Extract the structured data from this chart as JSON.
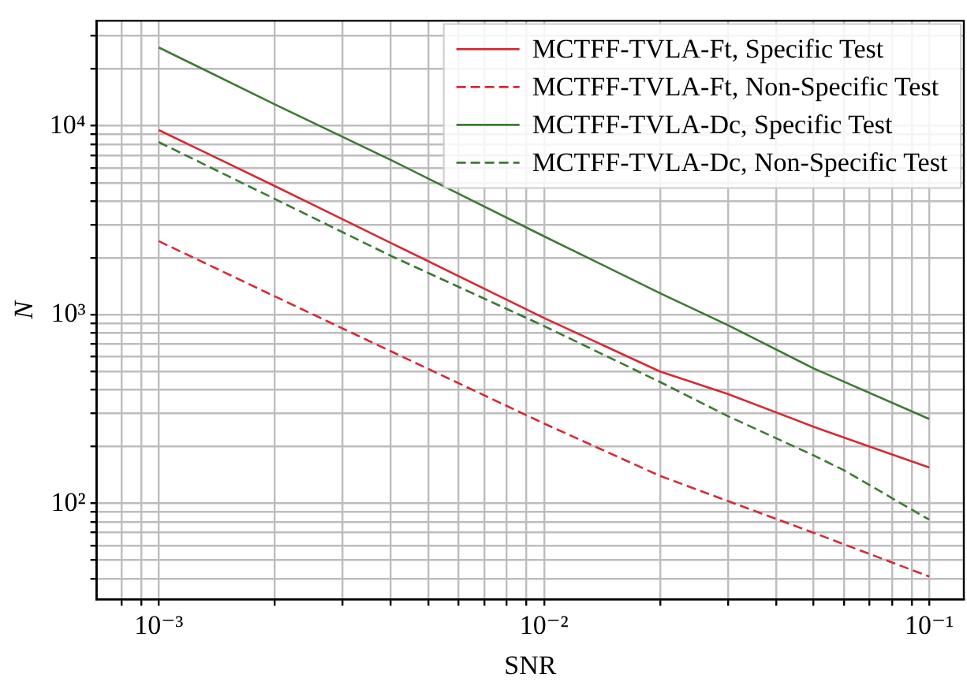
{
  "chart_data": {
    "type": "line",
    "xlabel": "SNR",
    "ylabel": "N",
    "log": "xy",
    "grid": true,
    "legend": "top right",
    "marker": "none",
    "xlim": [
      0.00069,
      0.123
    ],
    "ylim": [
      31,
      36000
    ],
    "xticks": [
      {
        "value": 0.0008,
        "label": null
      },
      {
        "value": 0.0009,
        "label": null
      },
      {
        "value": 0.001,
        "label": "10⁻³"
      },
      {
        "value": 0.002,
        "label": null
      },
      {
        "value": 0.003,
        "label": null
      },
      {
        "value": 0.004,
        "label": null
      },
      {
        "value": 0.005,
        "label": null
      },
      {
        "value": 0.006,
        "label": null
      },
      {
        "value": 0.007,
        "label": null
      },
      {
        "value": 0.008,
        "label": null
      },
      {
        "value": 0.009,
        "label": null
      },
      {
        "value": 0.01,
        "label": "10⁻²"
      },
      {
        "value": 0.02,
        "label": null
      },
      {
        "value": 0.03,
        "label": null
      },
      {
        "value": 0.04,
        "label": null
      },
      {
        "value": 0.05,
        "label": null
      },
      {
        "value": 0.06,
        "label": null
      },
      {
        "value": 0.07,
        "label": null
      },
      {
        "value": 0.08,
        "label": null
      },
      {
        "value": 0.09,
        "label": null
      },
      {
        "value": 0.1,
        "label": "10⁻¹"
      }
    ],
    "yticks": [
      {
        "value": 40,
        "label": null
      },
      {
        "value": 50,
        "label": null
      },
      {
        "value": 60,
        "label": null
      },
      {
        "value": 70,
        "label": null
      },
      {
        "value": 80,
        "label": null
      },
      {
        "value": 90,
        "label": null
      },
      {
        "value": 100,
        "label": "10²"
      },
      {
        "value": 200,
        "label": null
      },
      {
        "value": 300,
        "label": null
      },
      {
        "value": 400,
        "label": null
      },
      {
        "value": 500,
        "label": null
      },
      {
        "value": 600,
        "label": null
      },
      {
        "value": 700,
        "label": null
      },
      {
        "value": 800,
        "label": null
      },
      {
        "value": 900,
        "label": null
      },
      {
        "value": 1000,
        "label": "10³"
      },
      {
        "value": 2000,
        "label": null
      },
      {
        "value": 3000,
        "label": null
      },
      {
        "value": 4000,
        "label": null
      },
      {
        "value": 5000,
        "label": null
      },
      {
        "value": 6000,
        "label": null
      },
      {
        "value": 7000,
        "label": null
      },
      {
        "value": 8000,
        "label": null
      },
      {
        "value": 9000,
        "label": null
      },
      {
        "value": 10000,
        "label": "10⁴"
      },
      {
        "value": 20000,
        "label": null
      },
      {
        "value": 30000,
        "label": null
      }
    ],
    "series": [
      {
        "name": "MCTFF-TVLA-Ft, Specific Test",
        "color": "#d62a35",
        "line_style": "solid",
        "x": [
          0.001,
          0.002,
          0.004,
          0.01,
          0.02,
          0.03,
          0.05,
          0.07,
          0.1
        ],
        "values": [
          9500,
          4800,
          2400,
          960,
          500,
          380,
          255,
          200,
          155
        ]
      },
      {
        "name": "MCTFF-TVLA-Ft, Non-Specific Test",
        "color": "#d62a35",
        "line_style": "dashed",
        "x": [
          0.001,
          0.002,
          0.004,
          0.01,
          0.02,
          0.03,
          0.05,
          0.1
        ],
        "values": [
          2450,
          1250,
          640,
          265,
          140,
          103,
          70,
          41
        ]
      },
      {
        "name": "MCTFF-TVLA-Dc, Specific Test",
        "color": "#3d7a33",
        "line_style": "solid",
        "x": [
          0.001,
          0.002,
          0.004,
          0.01,
          0.02,
          0.03,
          0.05,
          0.1
        ],
        "values": [
          26000,
          13000,
          6600,
          2600,
          1300,
          880,
          520,
          280
        ]
      },
      {
        "name": "MCTFF-TVLA-Dc, Non-Specific Test",
        "color": "#3d7a33",
        "line_style": "dashed",
        "x": [
          0.001,
          0.002,
          0.004,
          0.01,
          0.02,
          0.03,
          0.05,
          0.06,
          0.1
        ],
        "values": [
          8200,
          4100,
          2050,
          870,
          440,
          290,
          180,
          150,
          82
        ]
      }
    ]
  }
}
